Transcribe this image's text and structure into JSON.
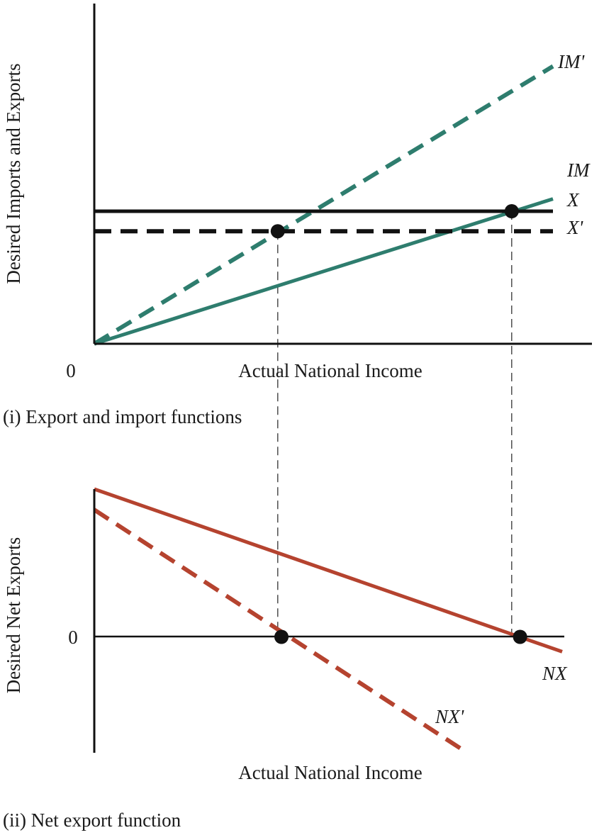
{
  "colors": {
    "import_line": "#2e7d6e",
    "export_line": "#111111",
    "net_export_line": "#b5432f",
    "axis": "#111111",
    "guide": "#333333",
    "point": "#111111"
  },
  "chart_data": [
    {
      "type": "line",
      "title": "(i) Export and import functions",
      "xlabel": "Actual National Income",
      "ylabel": "Desired Imports and Exports",
      "origin_label": "0",
      "xlim": [
        0,
        100
      ],
      "ylim": [
        0,
        100
      ],
      "series": [
        {
          "name": "IM'",
          "style": "dashed",
          "color": "import_line",
          "x": [
            0,
            100
          ],
          "y": [
            0,
            90
          ]
        },
        {
          "name": "IM",
          "style": "solid",
          "color": "import_line",
          "x": [
            0,
            100
          ],
          "y": [
            0,
            47
          ]
        },
        {
          "name": "X",
          "style": "solid",
          "color": "export_line",
          "x": [
            0,
            100
          ],
          "y": [
            43,
            43
          ]
        },
        {
          "name": "X'",
          "style": "dashed",
          "color": "export_line",
          "x": [
            0,
            100
          ],
          "y": [
            36.5,
            36.5
          ]
        }
      ],
      "points": [
        {
          "x": 40,
          "y": 36.5
        },
        {
          "x": 91,
          "y": 43
        }
      ]
    },
    {
      "type": "line",
      "title": "(ii) Net export function",
      "xlabel": "Actual National Income",
      "ylabel": "Desired Net Exports",
      "zero_label": "0",
      "xlim": [
        0,
        100
      ],
      "ylim": [
        -100,
        100
      ],
      "series": [
        {
          "name": "NX",
          "style": "solid",
          "color": "net_export_line",
          "x": [
            0,
            100
          ],
          "y": [
            100,
            -10
          ]
        },
        {
          "name": "NX'",
          "style": "dashed",
          "color": "net_export_line",
          "x": [
            0,
            79
          ],
          "y": [
            86,
            -77
          ]
        }
      ],
      "points": [
        {
          "x": 40,
          "y": 0
        },
        {
          "x": 91,
          "y": 0
        }
      ]
    }
  ]
}
